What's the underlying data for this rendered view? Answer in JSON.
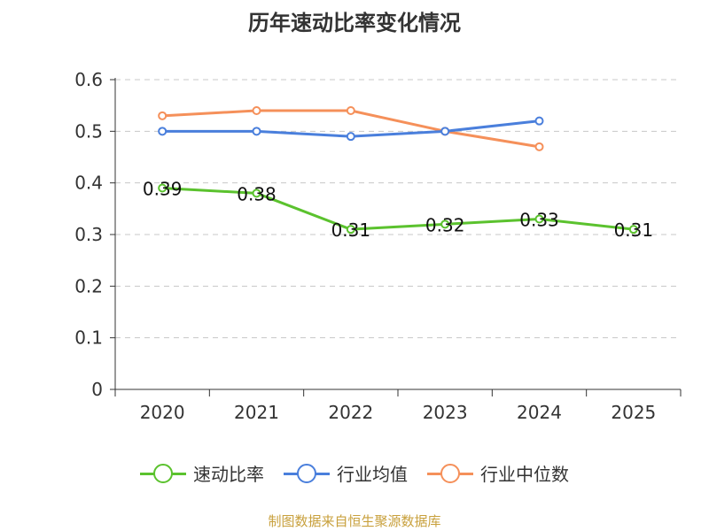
{
  "chart_data": {
    "type": "line",
    "title": "历年速动比率变化情况",
    "categories": [
      "2020",
      "2021",
      "2022",
      "2023",
      "2024",
      "2025"
    ],
    "ylim": [
      0,
      0.6
    ],
    "yticks": [
      "0",
      "0.1",
      "0.2",
      "0.3",
      "0.4",
      "0.5",
      "0.6"
    ],
    "grid": true,
    "legend_position": "bottom",
    "series": [
      {
        "name": "速动比率",
        "color": "#5bc22e",
        "values": [
          0.39,
          0.38,
          0.31,
          0.32,
          0.33,
          0.31
        ],
        "labels": [
          "0.39",
          "0.38",
          "0.31",
          "0.32",
          "0.33",
          "0.31"
        ],
        "show_labels": true
      },
      {
        "name": "行业均值",
        "color": "#4a7fdc",
        "values": [
          0.5,
          0.5,
          0.49,
          0.5,
          0.52,
          null
        ],
        "show_labels": false
      },
      {
        "name": "行业中位数",
        "color": "#f5905a",
        "values": [
          0.53,
          0.54,
          0.54,
          0.5,
          0.47,
          null
        ],
        "show_labels": false
      }
    ]
  },
  "source": "制图数据来自恒生聚源数据库"
}
